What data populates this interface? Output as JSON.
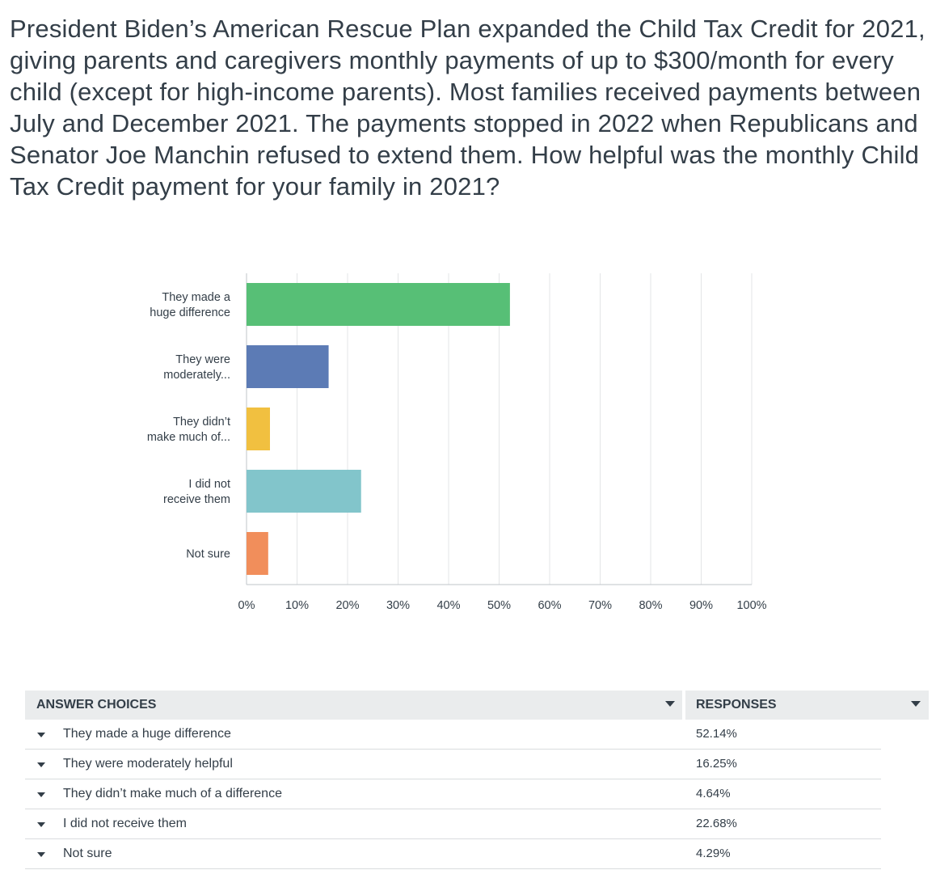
{
  "question": "President Biden’s American Rescue Plan expanded the Child Tax Credit for 2021, giving parents and caregivers monthly payments of up to $300/month for every child (except for high-income parents). Most families received payments between July and December 2021. The payments stopped in 2022 when Republicans and Senator Joe Manchin refused to extend them. How helpful was the monthly Child Tax Credit payment for your family in 2021?",
  "chart_data": {
    "type": "bar",
    "orientation": "horizontal",
    "categories": [
      [
        "They made a",
        "huge difference"
      ],
      [
        "They were",
        "moderately..."
      ],
      [
        "They didn’t",
        "make much of..."
      ],
      [
        "I did not",
        "receive them"
      ],
      [
        "Not sure"
      ]
    ],
    "values": [
      52.14,
      16.25,
      4.64,
      22.68,
      4.29
    ],
    "colors": [
      "#57bf76",
      "#5c7bb5",
      "#f1c040",
      "#82c5cb",
      "#f18e5b"
    ],
    "xlim": [
      0,
      100
    ],
    "xticks": [
      "0%",
      "10%",
      "20%",
      "30%",
      "40%",
      "50%",
      "60%",
      "70%",
      "80%",
      "90%",
      "100%"
    ],
    "grid": true,
    "legend": "none",
    "title": "",
    "xlabel": "",
    "ylabel": ""
  },
  "table": {
    "headers": {
      "answer": "ANSWER CHOICES",
      "responses": "RESPONSES"
    },
    "rows": [
      {
        "label": "They made a huge difference",
        "value": "52.14%"
      },
      {
        "label": "They were moderately helpful",
        "value": "16.25%"
      },
      {
        "label": "They didn’t make much of a difference",
        "value": "4.64%"
      },
      {
        "label": "I did not receive them",
        "value": "22.68%"
      },
      {
        "label": "Not sure",
        "value": "4.29%"
      }
    ]
  }
}
